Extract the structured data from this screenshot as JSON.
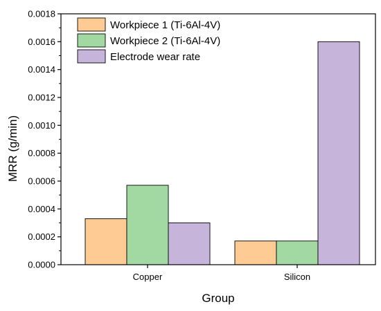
{
  "chart_data": {
    "type": "bar",
    "xlabel": "Group",
    "ylabel": "MRR (g/min)",
    "categories": [
      "Copper",
      "Silicon"
    ],
    "ylim": [
      0,
      0.0018
    ],
    "yticks": [
      "0.0000",
      "0.0002",
      "0.0004",
      "0.0006",
      "0.0008",
      "0.0010",
      "0.0012",
      "0.0014",
      "0.0016",
      "0.0018"
    ],
    "series": [
      {
        "name": "Workpiece 1 (Ti-6Al-4V)",
        "color": "#FDCB93",
        "values": [
          0.00033,
          0.00017
        ]
      },
      {
        "name": "Workpiece 2 (Ti-6Al-4V)",
        "color": "#A2D9A2",
        "values": [
          0.00057,
          0.00017
        ]
      },
      {
        "name": "Electrode wear rate",
        "color": "#C7B4DB",
        "values": [
          0.0003,
          0.0016
        ]
      }
    ],
    "legend": "top-left",
    "grid": false
  }
}
